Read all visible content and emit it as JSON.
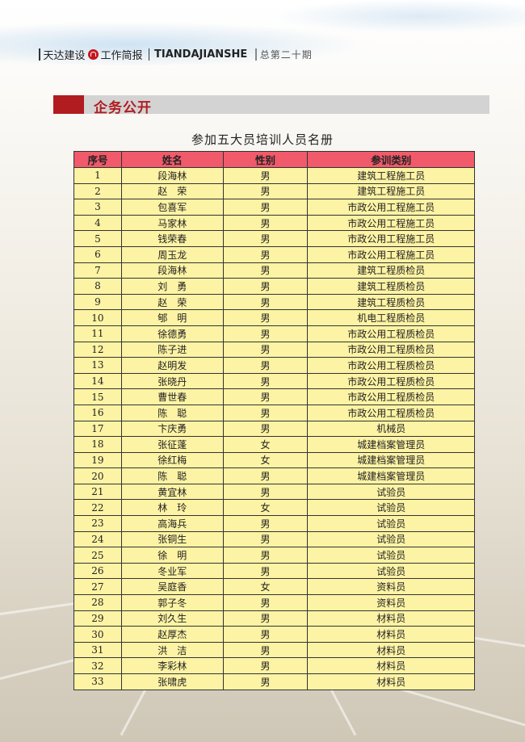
{
  "header": {
    "brand_cn": "天达建设",
    "brand_sub": "工作简报",
    "brand_en": "TIANDAJIANSHE",
    "issue": "总第二十期"
  },
  "section": {
    "title": "企务公开"
  },
  "document": {
    "title": "参加五大员培训人员名册"
  },
  "table": {
    "columns": [
      "序号",
      "姓名",
      "性别",
      "参训类别"
    ],
    "rows": [
      [
        "1",
        "段海林",
        "男",
        "建筑工程施工员"
      ],
      [
        "2",
        "赵　荣",
        "男",
        "建筑工程施工员"
      ],
      [
        "3",
        "包喜军",
        "男",
        "市政公用工程施工员"
      ],
      [
        "4",
        "马家林",
        "男",
        "市政公用工程施工员"
      ],
      [
        "5",
        "钱荣春",
        "男",
        "市政公用工程施工员"
      ],
      [
        "6",
        "周玉龙",
        "男",
        "市政公用工程施工员"
      ],
      [
        "7",
        "段海林",
        "男",
        "建筑工程质检员"
      ],
      [
        "8",
        "刘　勇",
        "男",
        "建筑工程质检员"
      ],
      [
        "9",
        "赵　荣",
        "男",
        "建筑工程质检员"
      ],
      [
        "10",
        "郇　明",
        "男",
        "机电工程质检员"
      ],
      [
        "11",
        "徐德勇",
        "男",
        "市政公用工程质检员"
      ],
      [
        "12",
        "陈子进",
        "男",
        "市政公用工程质检员"
      ],
      [
        "13",
        "赵明发",
        "男",
        "市政公用工程质检员"
      ],
      [
        "14",
        "张晓丹",
        "男",
        "市政公用工程质检员"
      ],
      [
        "15",
        "曹世春",
        "男",
        "市政公用工程质检员"
      ],
      [
        "16",
        "陈　聪",
        "男",
        "市政公用工程质检员"
      ],
      [
        "17",
        "卞庆勇",
        "男",
        "机械员"
      ],
      [
        "18",
        "张征蓬",
        "女",
        "城建档案管理员"
      ],
      [
        "19",
        "徐红梅",
        "女",
        "城建档案管理员"
      ],
      [
        "20",
        "陈　聪",
        "男",
        "城建档案管理员"
      ],
      [
        "21",
        "黄宜林",
        "男",
        "试验员"
      ],
      [
        "22",
        "林　玲",
        "女",
        "试验员"
      ],
      [
        "23",
        "高海兵",
        "男",
        "试验员"
      ],
      [
        "24",
        "张铜生",
        "男",
        "试验员"
      ],
      [
        "25",
        "徐　明",
        "男",
        "试验员"
      ],
      [
        "26",
        "冬业军",
        "男",
        "试验员"
      ],
      [
        "27",
        "吴庭香",
        "女",
        "资料员"
      ],
      [
        "28",
        "郭子冬",
        "男",
        "资料员"
      ],
      [
        "29",
        "刘久生",
        "男",
        "材料员"
      ],
      [
        "30",
        "赵厚杰",
        "男",
        "材料员"
      ],
      [
        "31",
        "洪　洁",
        "男",
        "材料员"
      ],
      [
        "32",
        "李彩林",
        "男",
        "材料员"
      ],
      [
        "33",
        "张啸虎",
        "男",
        "材料员"
      ]
    ]
  },
  "colors": {
    "header_row": "#f05a6a",
    "body_row": "#fdf3a4",
    "accent": "#b01c20",
    "section_bar": "#d3d3d3"
  }
}
